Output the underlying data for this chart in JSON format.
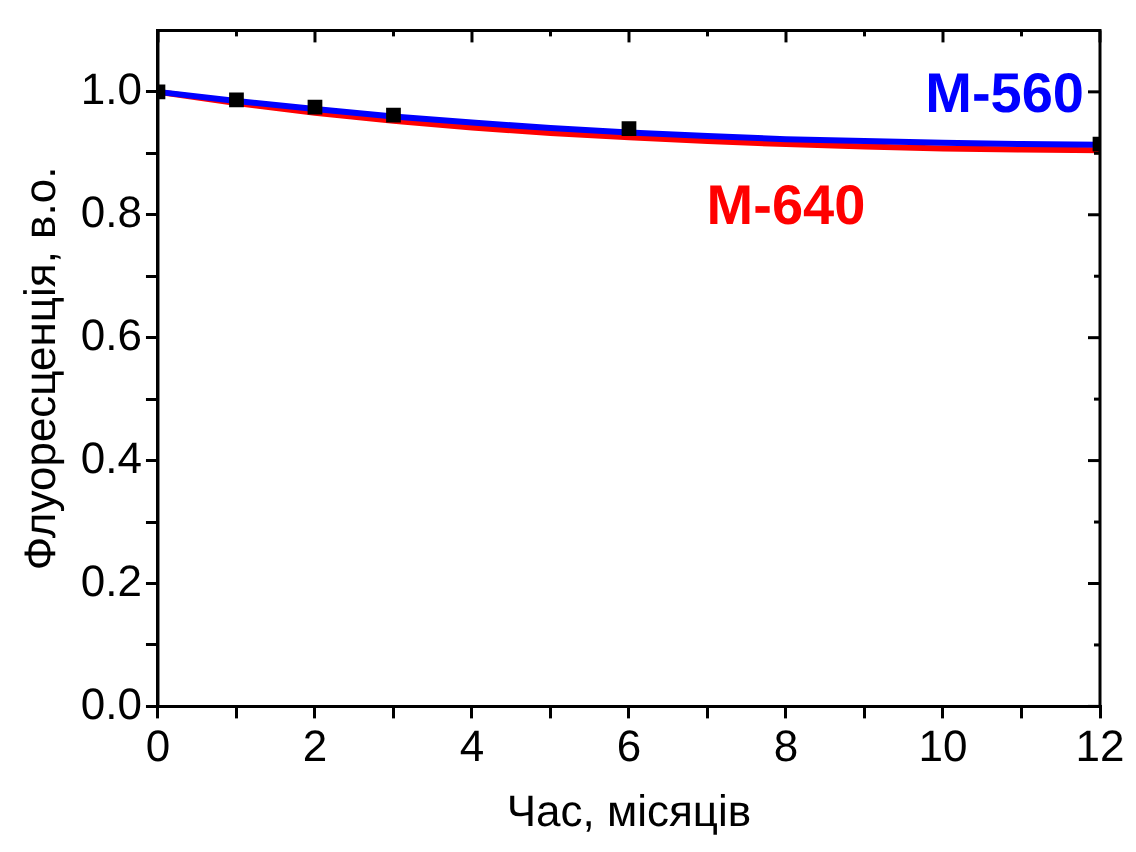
{
  "chart_data": {
    "type": "line",
    "xlabel": "Час, місяців",
    "ylabel": "Флуоресценція, в.о.",
    "xlim": [
      0,
      12
    ],
    "ylim": [
      0,
      1.1
    ],
    "xticks": [
      0,
      {
        "value": 1,
        "label": null
      },
      2,
      {
        "value": 3,
        "label": null
      },
      4,
      {
        "value": 5,
        "label": null
      },
      6,
      {
        "value": 7,
        "label": null
      },
      8,
      {
        "value": 9,
        "label": null
      },
      10,
      {
        "value": 11,
        "label": null
      },
      12
    ],
    "yticks": [
      {
        "value": 0,
        "label": "0.0"
      },
      {
        "value": 0.1,
        "label": null
      },
      0.2,
      {
        "value": 0.3,
        "label": null
      },
      0.4,
      {
        "value": 0.5,
        "label": null
      },
      0.6,
      {
        "value": 0.7,
        "label": null
      },
      0.8,
      {
        "value": 0.9,
        "label": null
      },
      {
        "value": 1,
        "label": "1.0"
      }
    ],
    "grid": false,
    "legend": false,
    "series": [
      {
        "type": "scatter",
        "marker": "square",
        "color": "#000000",
        "x": [
          0,
          1,
          2,
          3,
          6,
          12
        ],
        "values": [
          1.0,
          0.987,
          0.975,
          0.962,
          0.94,
          0.915
        ],
        "errors": [
          null,
          0.01,
          0.01,
          0.01,
          0.01,
          null
        ]
      },
      {
        "type": "line",
        "name": "M-560",
        "color": "#0000ff",
        "x": [
          0,
          1,
          2,
          3,
          4,
          5,
          6,
          7,
          8,
          9,
          10,
          11,
          12
        ],
        "values": [
          1.0,
          0.985,
          0.972,
          0.96,
          0.95,
          0.941,
          0.934,
          0.928,
          0.923,
          0.92,
          0.917,
          0.915,
          0.914
        ]
      },
      {
        "type": "line",
        "name": "M-640",
        "color": "#ff0000",
        "x": [
          0,
          1,
          2,
          3,
          4,
          5,
          6,
          7,
          8,
          9,
          10,
          11,
          12
        ],
        "values": [
          1.0,
          0.982,
          0.966,
          0.953,
          0.942,
          0.933,
          0.926,
          0.92,
          0.915,
          0.911,
          0.908,
          0.906,
          0.905
        ]
      }
    ]
  }
}
